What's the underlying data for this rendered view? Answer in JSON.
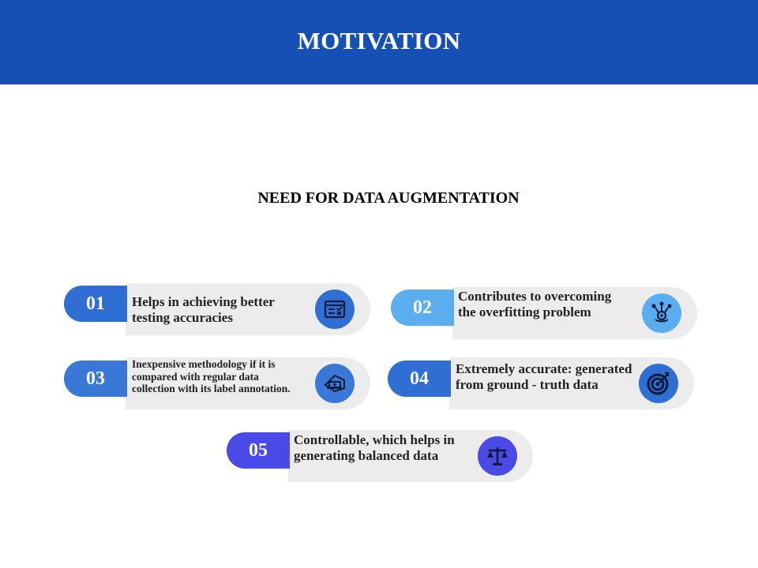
{
  "header": {
    "title": "MOTIVATION"
  },
  "subtitle": "NEED FOR DATA AUGMENTATION",
  "items": [
    {
      "number": "01",
      "text": "Helps in achieving better testing accuracies",
      "icon": "test-checklist-icon",
      "badge_color": "#2f6fd4",
      "icon_bg": "#2f6fd4"
    },
    {
      "number": "02",
      "text": "Contributes to overcoming the overfitting problem",
      "icon": "network-gear-icon",
      "badge_color": "#5aaef0",
      "icon_bg": "#5aaef0"
    },
    {
      "number": "03",
      "text": "Inexpensive methodology if it is compared with regular data collection with its label annotation.",
      "icon": "money-tag-icon",
      "badge_color": "#3a78d8",
      "icon_bg": "#3a78d8"
    },
    {
      "number": "04",
      "text": "Extremely accurate: generated from ground - truth data",
      "icon": "target-icon",
      "badge_color": "#2f6fd4",
      "icon_bg": "#2f6fd4"
    },
    {
      "number": "05",
      "text": "Controllable, which helps in generating balanced data",
      "icon": "scale-icon",
      "badge_color": "#4a4ae6",
      "icon_bg": "#4a4ae6"
    }
  ]
}
